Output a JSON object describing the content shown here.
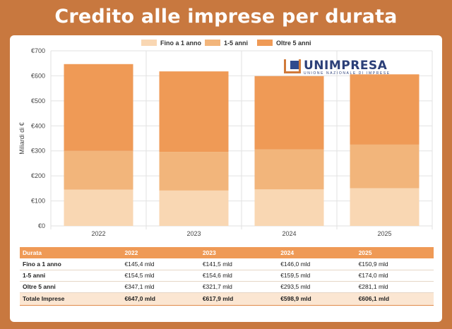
{
  "title": "Credito alle imprese per durata",
  "logo": {
    "name": "UNIMPRESA",
    "subtitle": "UNIONE NAZIONALE DI IMPRESE"
  },
  "colors": {
    "short": "#f9d7b3",
    "mid": "#f2b57b",
    "long": "#ef9a56",
    "header": "#ef9a56",
    "background": "#c8783f"
  },
  "chart_data": {
    "type": "bar",
    "stacked": true,
    "categories": [
      "2022",
      "2023",
      "2024",
      "2025"
    ],
    "series": [
      {
        "name": "Fino a 1 anno",
        "values": [
          145.4,
          141.5,
          146.0,
          150.9
        ]
      },
      {
        "name": "1-5 anni",
        "values": [
          154.5,
          154.6,
          159.5,
          174.0
        ]
      },
      {
        "name": "Oltre 5 anni",
        "values": [
          347.1,
          321.7,
          293.5,
          281.1
        ]
      }
    ],
    "ylabel": "Miliardi di €",
    "ylim": [
      0,
      700
    ],
    "yticks": [
      "€0",
      "€100",
      "€200",
      "€300",
      "€400",
      "€500",
      "€600",
      "€700"
    ],
    "grid": true,
    "legend": "top-center"
  },
  "table": {
    "headers": [
      "Durata",
      "2022",
      "2023",
      "2024",
      "2025"
    ],
    "rows": [
      [
        "Fino a 1 anno",
        "€145,4 mld",
        "€141,5 mld",
        "€146,0 mld",
        "€150,9 mld"
      ],
      [
        "1-5 anni",
        "€154,5 mld",
        "€154,6 mld",
        "€159,5 mld",
        "€174,0 mld"
      ],
      [
        "Oltre 5 anni",
        "€347,1 mld",
        "€321,7 mld",
        "€293,5 mld",
        "€281,1 mld"
      ]
    ],
    "total": [
      "Totale Imprese",
      "€647,0 mld",
      "€617,9 mld",
      "€598,9 mld",
      "€606,1 mld"
    ]
  }
}
